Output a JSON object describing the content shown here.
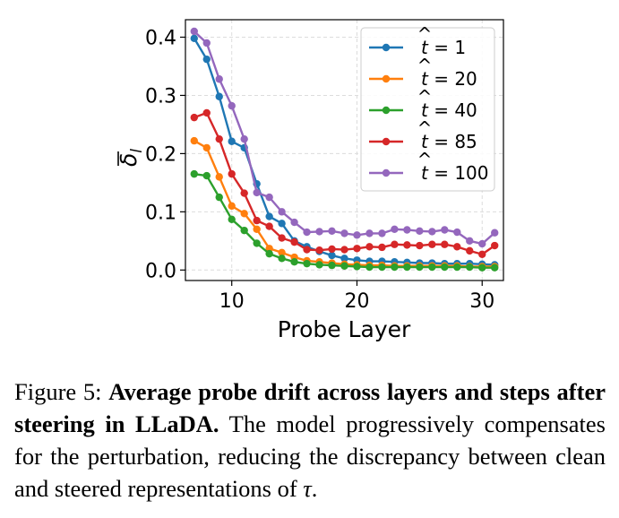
{
  "chart_data": {
    "type": "line",
    "xlabel": "Probe Layer",
    "ylabel": "δ̄_l",
    "xlim": [
      6.3,
      31.7
    ],
    "ylim": [
      -0.018,
      0.43
    ],
    "xticks": [
      10,
      20,
      30
    ],
    "yticks": [
      0.0,
      0.1,
      0.2,
      0.3,
      0.4
    ],
    "xtick_labels": [
      "10",
      "20",
      "30"
    ],
    "ytick_labels": [
      "0.0",
      "0.1",
      "0.2",
      "0.3",
      "0.4"
    ],
    "grid": true,
    "legend_position": "top-right",
    "x": [
      7,
      8,
      9,
      10,
      11,
      12,
      13,
      14,
      15,
      16,
      17,
      18,
      19,
      20,
      21,
      22,
      23,
      24,
      25,
      26,
      27,
      28,
      29,
      30,
      31
    ],
    "series": [
      {
        "name": "t̂ = 1",
        "color": "#1f77b4",
        "values": [
          0.398,
          0.362,
          0.298,
          0.221,
          0.21,
          0.148,
          0.092,
          0.08,
          0.05,
          0.04,
          0.032,
          0.025,
          0.02,
          0.017,
          0.015,
          0.015,
          0.014,
          0.013,
          0.012,
          0.012,
          0.011,
          0.011,
          0.011,
          0.01,
          0.009
        ]
      },
      {
        "name": "t̂ = 20",
        "color": "#ff7f0e",
        "values": [
          0.222,
          0.21,
          0.16,
          0.11,
          0.097,
          0.07,
          0.037,
          0.03,
          0.022,
          0.016,
          0.014,
          0.012,
          0.01,
          0.009,
          0.008,
          0.008,
          0.007,
          0.007,
          0.007,
          0.007,
          0.007,
          0.007,
          0.006,
          0.006,
          0.006
        ]
      },
      {
        "name": "t̂ = 40",
        "color": "#2ca02c",
        "values": [
          0.165,
          0.162,
          0.125,
          0.087,
          0.068,
          0.046,
          0.028,
          0.02,
          0.014,
          0.011,
          0.009,
          0.008,
          0.007,
          0.006,
          0.005,
          0.005,
          0.005,
          0.005,
          0.005,
          0.005,
          0.005,
          0.005,
          0.005,
          0.004,
          0.004
        ]
      },
      {
        "name": "t̂ = 85",
        "color": "#d62728",
        "values": [
          0.262,
          0.27,
          0.225,
          0.165,
          0.132,
          0.085,
          0.075,
          0.055,
          0.048,
          0.035,
          0.034,
          0.036,
          0.035,
          0.037,
          0.04,
          0.039,
          0.044,
          0.043,
          0.042,
          0.044,
          0.044,
          0.04,
          0.033,
          0.027,
          0.042
        ]
      },
      {
        "name": "t̂ = 100",
        "color": "#9467bd",
        "values": [
          0.41,
          0.39,
          0.328,
          0.282,
          0.225,
          0.133,
          0.125,
          0.1,
          0.082,
          0.065,
          0.066,
          0.067,
          0.063,
          0.06,
          0.063,
          0.063,
          0.07,
          0.069,
          0.067,
          0.066,
          0.069,
          0.065,
          0.05,
          0.045,
          0.064
        ]
      }
    ]
  },
  "legend_t": "t",
  "legend_values": [
    "1",
    "20",
    "40",
    "85",
    "100"
  ],
  "caption": {
    "prefix": "Figure 5: ",
    "bold": "Average probe drift across layers and steps after steering in LLaDA.",
    "body": " The model progressively compensates for the perturbation, reducing the discrepancy between clean and steered representations of ",
    "symbol": "τ",
    "end": "."
  }
}
